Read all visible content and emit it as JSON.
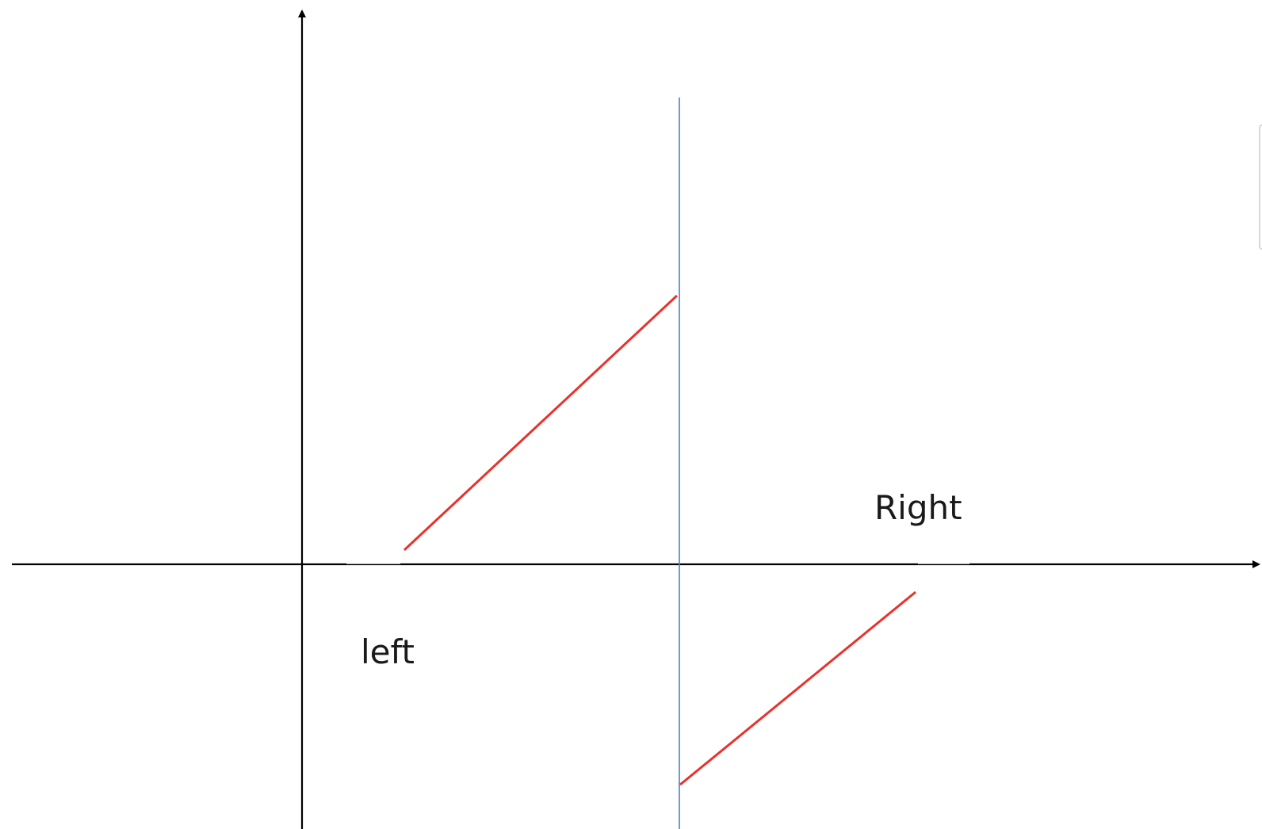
{
  "labels": {
    "left": "left",
    "right": "Right"
  },
  "colors": {
    "axis": "#000000",
    "boundary": "#4a7fd4",
    "segment": "#e8322d",
    "background": "#ffffff"
  }
}
